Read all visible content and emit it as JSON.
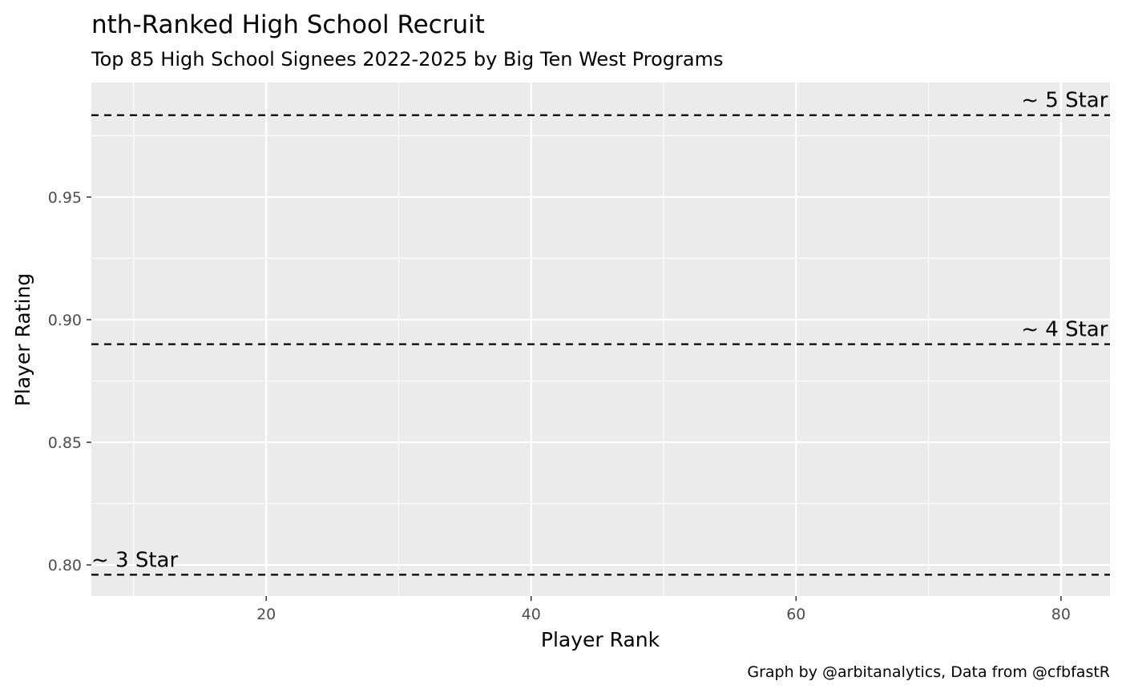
{
  "chart_data": {
    "type": "line",
    "title": "nth-Ranked High School Recruit",
    "subtitle": "Top 85 High School Signees 2022-2025 by Big Ten West Programs",
    "xlabel": "Player Rank",
    "ylabel": "Player Rating",
    "caption": "Graph by @arbitanalytics, Data from @cfbfastR",
    "xlim": [
      6.8,
      83.7
    ],
    "ylim": [
      0.7873,
      0.9967
    ],
    "x_ticks": [
      20,
      40,
      60,
      80
    ],
    "x_tick_labels": [
      "20",
      "40",
      "60",
      "80"
    ],
    "y_ticks": [
      0.8,
      0.85,
      0.9,
      0.95
    ],
    "y_tick_labels": [
      "0.80",
      "0.85",
      "0.90",
      "0.95"
    ],
    "grid": true,
    "series": [],
    "reference_lines": [
      {
        "label": "~ 5 Star",
        "y": 0.9834,
        "label_x": 77
      },
      {
        "label": "~ 4 Star",
        "y": 0.89,
        "label_x": 77
      },
      {
        "label": "~ 3 Star",
        "y": 0.796,
        "label_x": 6.8
      }
    ]
  }
}
